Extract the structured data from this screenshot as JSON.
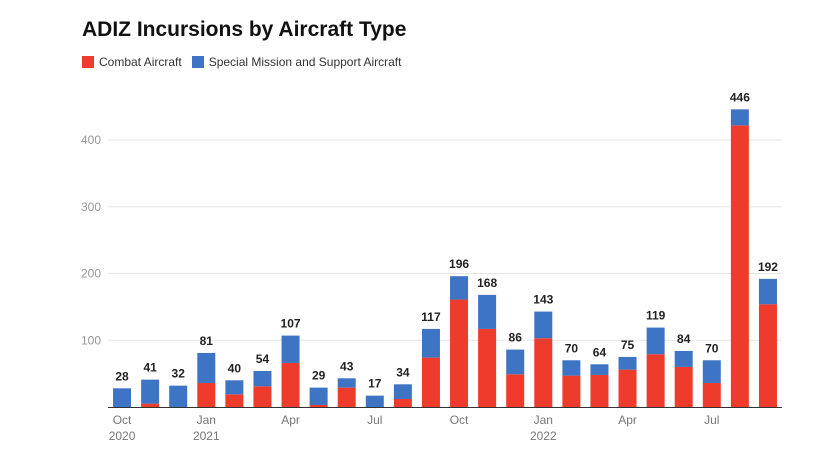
{
  "chart_data": {
    "type": "bar",
    "stacked": true,
    "title": "ADIZ Incursions by Aircraft Type",
    "xlabel": "",
    "ylabel": "",
    "ylim": [
      0,
      460
    ],
    "yticks": [
      100,
      200,
      300,
      400
    ],
    "grid": true,
    "legend_position": "top-left",
    "x_tick_labels": [
      {
        "index": 0,
        "line1": "Oct",
        "line2": "2020"
      },
      {
        "index": 3,
        "line1": "Jan",
        "line2": "2021"
      },
      {
        "index": 6,
        "line1": "Apr",
        "line2": ""
      },
      {
        "index": 9,
        "line1": "Jul",
        "line2": ""
      },
      {
        "index": 12,
        "line1": "Oct",
        "line2": ""
      },
      {
        "index": 15,
        "line1": "Jan",
        "line2": "2022"
      },
      {
        "index": 18,
        "line1": "Apr",
        "line2": ""
      },
      {
        "index": 21,
        "line1": "Jul",
        "line2": ""
      }
    ],
    "categories": [
      "2020-10",
      "2020-11",
      "2020-12",
      "2021-01",
      "2021-02",
      "2021-03",
      "2021-04",
      "2021-05",
      "2021-06",
      "2021-07",
      "2021-08",
      "2021-09",
      "2021-10",
      "2021-11",
      "2021-12",
      "2022-01",
      "2022-02",
      "2022-03",
      "2022-04",
      "2022-05",
      "2022-06",
      "2022-07",
      "2022-08",
      "2022-09"
    ],
    "totals": [
      28,
      41,
      32,
      81,
      40,
      54,
      107,
      29,
      43,
      17,
      34,
      117,
      196,
      168,
      86,
      143,
      70,
      64,
      75,
      119,
      84,
      70,
      446,
      192
    ],
    "series": [
      {
        "name": "Combat Aircraft",
        "color": "#ee3b2c",
        "values": [
          0,
          5,
          0,
          36,
          19,
          31,
          66,
          3,
          29,
          0,
          12,
          74,
          161,
          117,
          49,
          103,
          47,
          48,
          56,
          79,
          60,
          36,
          422,
          154
        ]
      },
      {
        "name": "Special Mission and Support Aircraft",
        "color": "#3e74c4",
        "values": [
          28,
          36,
          32,
          45,
          21,
          23,
          41,
          26,
          14,
          17,
          22,
          43,
          35,
          51,
          37,
          40,
          23,
          16,
          19,
          40,
          24,
          34,
          24,
          38
        ]
      }
    ]
  }
}
